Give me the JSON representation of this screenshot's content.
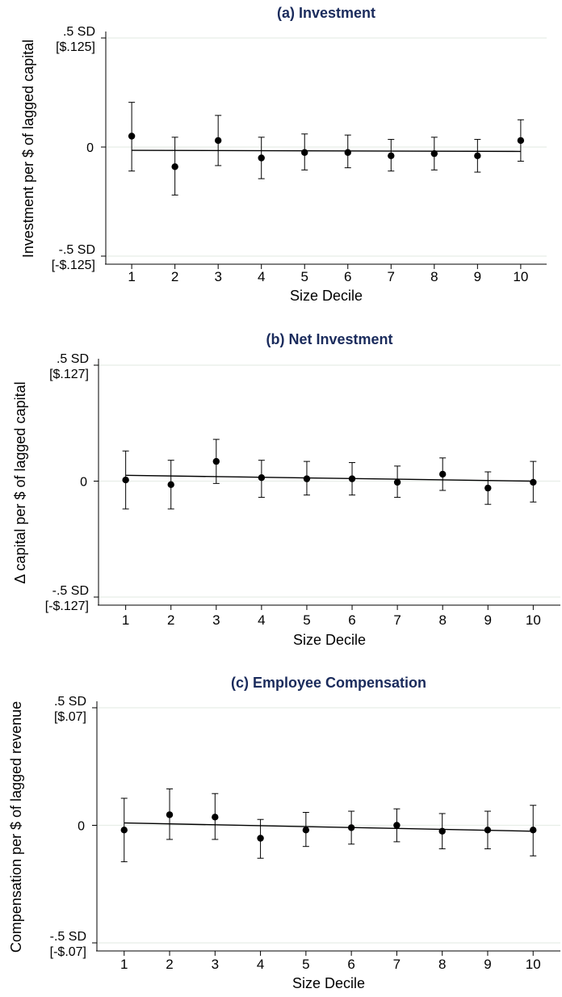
{
  "chart_data": [
    {
      "type": "scatter",
      "title": "(a) Investment",
      "xlabel": "Size Decile",
      "ylabel": "Investment per $ of lagged capital",
      "x_ticks": [
        1,
        2,
        3,
        4,
        5,
        6,
        7,
        8,
        9,
        10
      ],
      "xlim": [
        0.4,
        10.6
      ],
      "ylim": [
        -0.5,
        0.5
      ],
      "y_ticks": [
        {
          "value": 0.5,
          "label": ".5 SD",
          "sublabel": "[$.125]"
        },
        {
          "value": 0,
          "label": "0",
          "sublabel": ""
        },
        {
          "value": -0.5,
          "label": "-.5 SD",
          "sublabel": "[-$.125]"
        }
      ],
      "grid": true,
      "series": [
        {
          "x": [
            1,
            2,
            3,
            4,
            5,
            6,
            7,
            8,
            9,
            10
          ],
          "y": [
            0.05,
            -0.09,
            0.03,
            -0.05,
            -0.025,
            -0.025,
            -0.04,
            -0.03,
            -0.04,
            0.03
          ],
          "ci_low": [
            -0.11,
            -0.22,
            -0.085,
            -0.145,
            -0.105,
            -0.095,
            -0.11,
            -0.105,
            -0.115,
            -0.065
          ],
          "ci_high": [
            0.205,
            0.045,
            0.145,
            0.045,
            0.06,
            0.055,
            0.035,
            0.045,
            0.035,
            0.125
          ]
        }
      ],
      "fit_line": {
        "x": [
          1,
          10
        ],
        "y": [
          -0.015,
          -0.02
        ]
      }
    },
    {
      "type": "scatter",
      "title": "(b) Net Investment",
      "xlabel": "Size Decile",
      "ylabel": "Δ capital per $ of lagged capital",
      "x_ticks": [
        1,
        2,
        3,
        4,
        5,
        6,
        7,
        8,
        9,
        10
      ],
      "xlim": [
        0.4,
        10.6
      ],
      "ylim": [
        -0.5,
        0.5
      ],
      "y_ticks": [
        {
          "value": 0.5,
          "label": ".5 SD",
          "sublabel": "[$.127]"
        },
        {
          "value": 0,
          "label": "0",
          "sublabel": ""
        },
        {
          "value": -0.5,
          "label": "-.5 SD",
          "sublabel": "[-$.127]"
        }
      ],
      "grid": true,
      "series": [
        {
          "x": [
            1,
            2,
            3,
            4,
            5,
            6,
            7,
            8,
            9,
            10
          ],
          "y": [
            0.005,
            -0.015,
            0.085,
            0.015,
            0.01,
            0.01,
            -0.005,
            0.03,
            -0.03,
            -0.005
          ],
          "ci_low": [
            -0.12,
            -0.12,
            -0.01,
            -0.07,
            -0.06,
            -0.06,
            -0.07,
            -0.04,
            -0.1,
            -0.09
          ],
          "ci_high": [
            0.13,
            0.09,
            0.18,
            0.09,
            0.085,
            0.08,
            0.065,
            0.1,
            0.04,
            0.085
          ]
        }
      ],
      "fit_line": {
        "x": [
          1,
          10
        ],
        "y": [
          0.025,
          0.0
        ]
      }
    },
    {
      "type": "scatter",
      "title": "(c) Employee Compensation",
      "xlabel": "Size Decile",
      "ylabel": "Compensation per $ of lagged revenue",
      "x_ticks": [
        1,
        2,
        3,
        4,
        5,
        6,
        7,
        8,
        9,
        10
      ],
      "xlim": [
        0.4,
        10.6
      ],
      "ylim": [
        -0.5,
        0.5
      ],
      "y_ticks": [
        {
          "value": 0.5,
          "label": ".5 SD",
          "sublabel": "[$.07]"
        },
        {
          "value": 0,
          "label": "0",
          "sublabel": ""
        },
        {
          "value": -0.5,
          "label": "-.5 SD",
          "sublabel": "[-$.07]"
        }
      ],
      "grid": true,
      "series": [
        {
          "x": [
            1,
            2,
            3,
            4,
            5,
            6,
            7,
            8,
            9,
            10
          ],
          "y": [
            -0.02,
            0.045,
            0.035,
            -0.055,
            -0.02,
            -0.01,
            0.0,
            -0.025,
            -0.02,
            -0.02
          ],
          "ci_low": [
            -0.155,
            -0.06,
            -0.06,
            -0.14,
            -0.09,
            -0.08,
            -0.07,
            -0.1,
            -0.1,
            -0.13
          ],
          "ci_high": [
            0.115,
            0.155,
            0.135,
            0.025,
            0.055,
            0.06,
            0.07,
            0.05,
            0.06,
            0.085
          ]
        }
      ],
      "fit_line": {
        "x": [
          1,
          10
        ],
        "y": [
          0.01,
          -0.025
        ]
      }
    }
  ],
  "colors": {
    "title": "#1a2b5c",
    "text": "#000000",
    "marks": "#000000",
    "grid": "#e8ede8",
    "axis": "#000000",
    "background": "#ffffff"
  }
}
